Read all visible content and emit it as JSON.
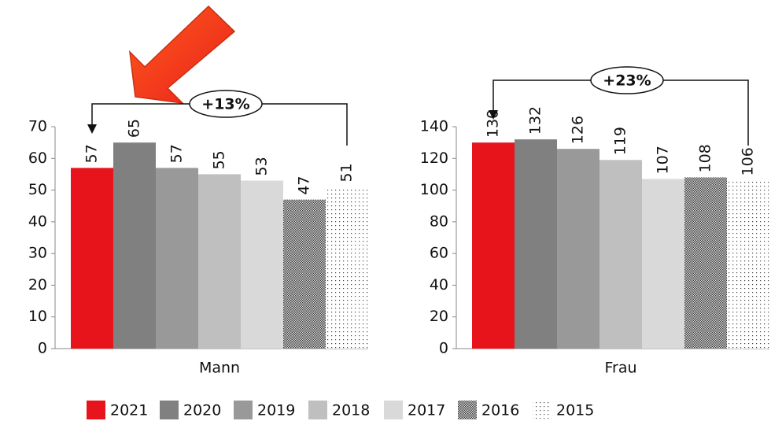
{
  "chart_data": {
    "type": "bar",
    "categories": [
      "Mann",
      "Frau"
    ],
    "series": [
      {
        "name": "2021",
        "color": "#e8141c",
        "values": [
          57,
          130
        ]
      },
      {
        "name": "2020",
        "color": "#808080",
        "values": [
          65,
          132
        ]
      },
      {
        "name": "2019",
        "color": "#999999",
        "values": [
          57,
          126
        ]
      },
      {
        "name": "2018",
        "color": "#bfbfbf",
        "values": [
          55,
          119
        ]
      },
      {
        "name": "2017",
        "color": "#d9d9d9",
        "values": [
          53,
          107
        ]
      },
      {
        "name": "2016",
        "color": "#3a3a3a",
        "pattern": "checker",
        "values": [
          47,
          108
        ]
      },
      {
        "name": "2015",
        "color": "#444444",
        "pattern": "dots",
        "values": [
          51,
          106
        ]
      }
    ],
    "panels": [
      {
        "ylim": [
          0,
          70
        ],
        "yticks": [
          0,
          10,
          20,
          30,
          40,
          50,
          60,
          70
        ],
        "annotation": "+13%"
      },
      {
        "ylim": [
          0,
          140
        ],
        "yticks": [
          0,
          20,
          40,
          60,
          80,
          100,
          120,
          140
        ],
        "annotation": "+23%"
      }
    ]
  }
}
